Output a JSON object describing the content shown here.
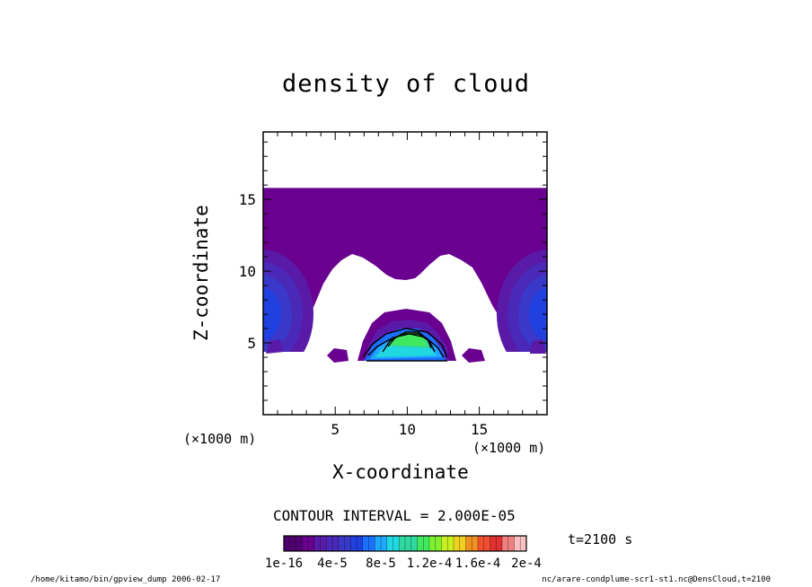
{
  "chart_data": {
    "type": "heatmap",
    "title": "density of cloud",
    "xlabel": "X-coordinate",
    "ylabel": "Z-coordinate",
    "x_unit_label": "(×1000 m)",
    "xlim": [
      0,
      19.7
    ],
    "ylim": [
      0,
      19.7
    ],
    "xticks": [
      5,
      10,
      15
    ],
    "yticks": [
      5,
      10,
      15
    ],
    "contour_interval": "CONTOUR INTERVAL = 2.000E-05",
    "time": "t=2100 s",
    "colorbar": {
      "labels": [
        "1e-16",
        "4e-5",
        "8e-5",
        "1.2e-4",
        "1.6e-4",
        "2e-4"
      ],
      "range": [
        0,
        0.0002
      ]
    },
    "regions": [
      {
        "name": "upper cloud layer",
        "z_top": 15.8,
        "value_level": 1
      },
      {
        "name": "left edge core",
        "x": 1.0,
        "z": 7.0,
        "value": 3e-05
      },
      {
        "name": "right edge core",
        "x": 18.7,
        "z": 7.0,
        "value": 3e-05
      },
      {
        "name": "central plume",
        "x": 10.0,
        "z": 5.0,
        "peak_value": 0.00011
      }
    ],
    "color_levels": [
      "#4f006f",
      "#6a008f",
      "#5a1aa8",
      "#4a28b8",
      "#3a38c8",
      "#2040e0",
      "#1a70ff",
      "#20a8ff",
      "#20d8e0",
      "#30d8a0",
      "#40e860",
      "#80f030",
      "#c8f020",
      "#f0d020",
      "#f09020",
      "#f05030",
      "#e03030",
      "#f08080",
      "#f8c0c0"
    ]
  },
  "footer": {
    "left": "/home/kitamo/bin/gpview_dump  2006-02-17",
    "right": "nc/arare-condplume-scr1-st1.nc@DensCloud,t=2100"
  }
}
